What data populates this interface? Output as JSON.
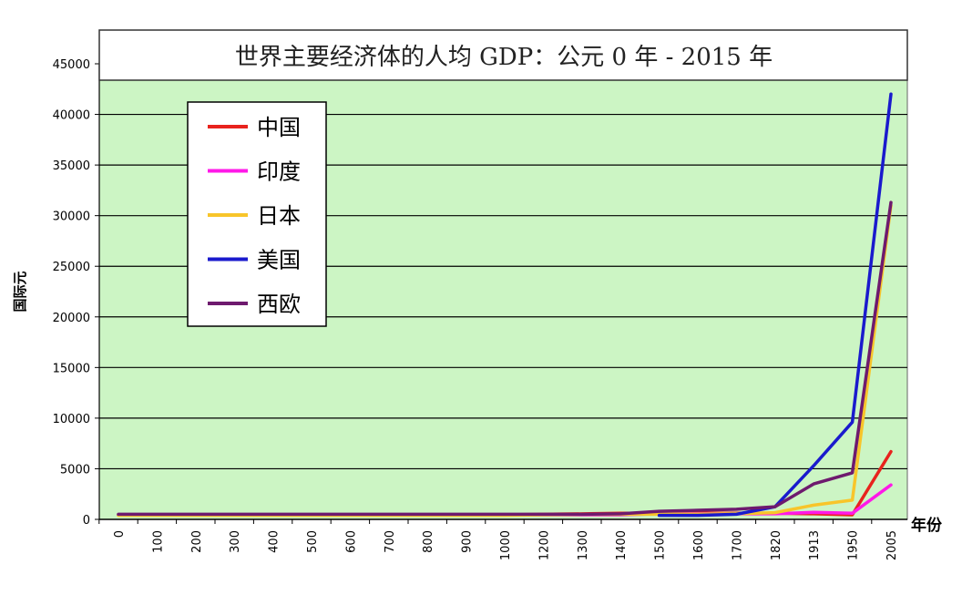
{
  "chart_data": {
    "type": "line",
    "title": "世界主要经济体的人均 GDP：公元 0 年 - 2015 年",
    "ylabel": "国际元",
    "xlabel": "年份",
    "ylim": [
      0,
      45000
    ],
    "yticks": [
      0,
      5000,
      10000,
      15000,
      20000,
      25000,
      30000,
      35000,
      40000,
      45000
    ],
    "categories": [
      "0",
      "100",
      "200",
      "300",
      "400",
      "500",
      "600",
      "700",
      "800",
      "900",
      "1000",
      "1200",
      "1300",
      "1400",
      "1500",
      "1600",
      "1700",
      "1820",
      "1913",
      "1950",
      "2005"
    ],
    "grid": true,
    "legend_position": "top-left",
    "plot_background": "#ccf5c4",
    "series": [
      {
        "name": "中国",
        "color": "#e8231d",
        "values": [
          450,
          450,
          450,
          450,
          450,
          450,
          450,
          450,
          450,
          450,
          450,
          500,
          550,
          600,
          600,
          600,
          600,
          600,
          550,
          450,
          6700
        ]
      },
      {
        "name": "印度",
        "color": "#ff19e8",
        "values": [
          450,
          450,
          450,
          450,
          450,
          450,
          450,
          450,
          450,
          450,
          450,
          450,
          450,
          450,
          550,
          550,
          550,
          550,
          700,
          600,
          3400
        ]
      },
      {
        "name": "日本",
        "color": "#f8c52a",
        "values": [
          400,
          400,
          400,
          400,
          400,
          400,
          400,
          400,
          400,
          400,
          400,
          450,
          500,
          500,
          500,
          520,
          570,
          670,
          1400,
          1900,
          31000
        ]
      },
      {
        "name": "美国",
        "color": "#1a1acd",
        "values": [
          null,
          null,
          null,
          null,
          null,
          null,
          null,
          null,
          null,
          null,
          null,
          null,
          null,
          null,
          400,
          400,
          500,
          1250,
          5300,
          9600,
          42000
        ]
      },
      {
        "name": "西欧",
        "color": "#6e1a6e",
        "values": [
          500,
          500,
          500,
          500,
          500,
          500,
          500,
          500,
          500,
          500,
          500,
          500,
          500,
          550,
          800,
          900,
          1000,
          1250,
          3500,
          4600,
          31300
        ]
      }
    ]
  }
}
